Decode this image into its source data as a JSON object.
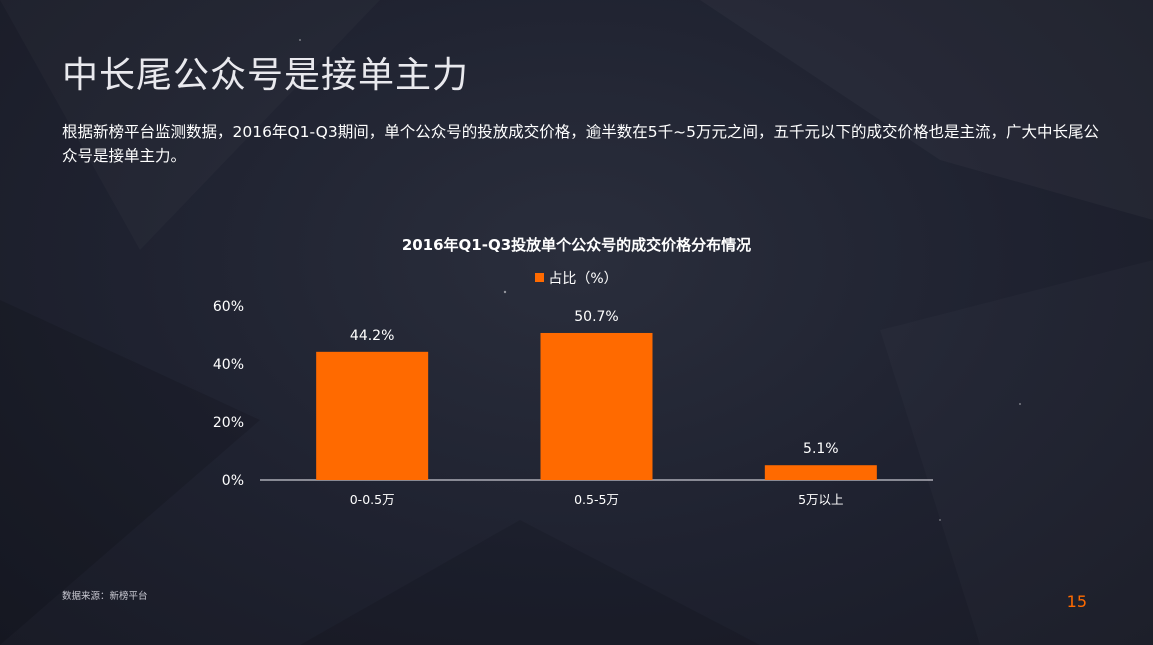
{
  "slide": {
    "title": "中长尾公众号是接单主力",
    "intro": "根据新榜平台监测数据，2016年Q1-Q3期间，单个公众号的投放成交价格，逾半数在5千~5万元之间，五千元以下的成交价格也是主流，广大中长尾公众号是接单主力。",
    "source": "数据来源：新榜平台",
    "page_number": "15"
  },
  "colors": {
    "accent": "#ff6a00",
    "axis": "#c8c8d0"
  },
  "chart_data": {
    "type": "bar",
    "title": "2016年Q1-Q3投放单个公众号的成交价格分布情况",
    "categories": [
      "0-0.5万",
      "0.5-5万",
      "5万以上"
    ],
    "series": [
      {
        "name": "占比（%）",
        "values": [
          44.2,
          50.7,
          5.1
        ],
        "labels": [
          "44.2%",
          "50.7%",
          "5.1%"
        ]
      }
    ],
    "ylim": [
      0,
      60
    ],
    "yticks": [
      0,
      20,
      40,
      60
    ],
    "ytick_labels": [
      "0%",
      "20%",
      "40%",
      "60%"
    ],
    "grid": false,
    "legend": "top-center"
  }
}
